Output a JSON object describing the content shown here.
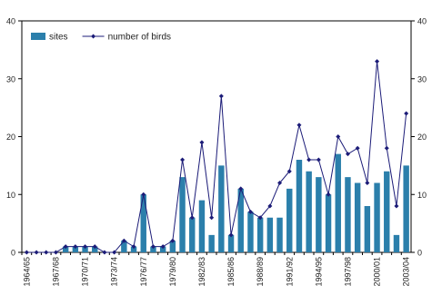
{
  "chart_data": {
    "type": "bar-line",
    "categories": [
      "1964/65",
      null,
      null,
      "1967/68",
      null,
      null,
      "1970/71",
      null,
      null,
      "1973/74",
      null,
      null,
      "1976/77",
      null,
      null,
      "1979/80",
      null,
      null,
      "1982/83",
      null,
      null,
      "1985/86",
      null,
      null,
      "1988/89",
      null,
      null,
      "1991/92",
      null,
      null,
      "1994/95",
      null,
      null,
      "1997/98",
      null,
      null,
      "2000/01",
      null,
      null,
      "2003/04"
    ],
    "series": [
      {
        "name": "sites",
        "type": "bar",
        "color": "#2b7fab",
        "values": [
          0,
          0,
          0,
          0,
          1,
          1,
          1,
          1,
          0,
          0,
          2,
          1,
          10,
          1,
          1,
          2,
          13,
          6,
          9,
          3,
          15,
          3,
          11,
          7,
          6,
          6,
          6,
          11,
          16,
          14,
          13,
          10,
          17,
          13,
          12,
          8,
          12,
          14,
          3,
          15
        ]
      },
      {
        "name": "number of birds",
        "type": "line",
        "axis": "y2",
        "color": "#1c1c78",
        "values": [
          0,
          0,
          0,
          0,
          1,
          1,
          1,
          1,
          0,
          0,
          2,
          1,
          10,
          1,
          1,
          2,
          16,
          6,
          19,
          6,
          27,
          3,
          11,
          7,
          6,
          8,
          12,
          14,
          22,
          16,
          16,
          10,
          20,
          17,
          18,
          12,
          33,
          18,
          8,
          24
        ]
      }
    ],
    "ylim": [
      0,
      40
    ],
    "yticks": [
      0,
      10,
      20,
      30,
      40
    ],
    "y2lim": [
      0,
      40
    ],
    "y2ticks": [
      0,
      10,
      20,
      30,
      40
    ],
    "legend": "top-left"
  }
}
